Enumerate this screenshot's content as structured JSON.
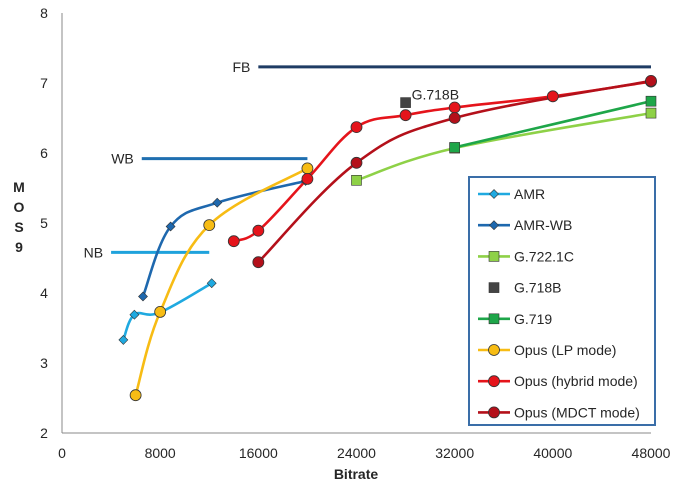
{
  "chart_data": {
    "type": "line",
    "title": "",
    "xlabel": "Bitrate",
    "ylabel": "MOS 9",
    "xlim": [
      0,
      48000
    ],
    "ylim": [
      2,
      8
    ],
    "xticks": [
      0,
      8000,
      16000,
      24000,
      32000,
      40000,
      48000
    ],
    "yticks": [
      2,
      3,
      4,
      5,
      6,
      7,
      8
    ],
    "grid": false,
    "legend_position": "right",
    "bands": [
      {
        "label": "NB",
        "y": 4.58,
        "x": [
          4000,
          12000
        ],
        "color": "#1fa2dc"
      },
      {
        "label": "WB",
        "y": 5.92,
        "x": [
          6500,
          20000
        ],
        "color": "#1f6fb0"
      },
      {
        "label": "FB",
        "y": 7.23,
        "x": [
          16000,
          48000
        ],
        "color": "#1f3c64"
      }
    ],
    "series": [
      {
        "name": "AMR",
        "color": "#1fa9e0",
        "marker": "diamond",
        "marker_fill": "#1fa9e0",
        "points": [
          [
            5000,
            3.33
          ],
          [
            5900,
            3.69
          ],
          [
            7950,
            3.72
          ],
          [
            12200,
            4.14
          ]
        ]
      },
      {
        "name": "AMR-WB",
        "color": "#1e68ae",
        "marker": "diamond",
        "marker_fill": "#1e68ae",
        "points": [
          [
            6600,
            3.95
          ],
          [
            8850,
            4.95
          ],
          [
            12650,
            5.29
          ],
          [
            19850,
            5.6
          ]
        ]
      },
      {
        "name": "G.722.1C",
        "color": "#8ed147",
        "marker": "square",
        "marker_fill": "#8ed147",
        "points": [
          [
            24000,
            5.61
          ],
          [
            32000,
            6.07
          ],
          [
            48000,
            6.57
          ]
        ]
      },
      {
        "name": "G.718B",
        "color": "#444444",
        "marker": "square",
        "marker_fill": "#444444",
        "no_line": true,
        "points": [
          [
            28000,
            6.72
          ]
        ]
      },
      {
        "name": "G.719",
        "color": "#1ea649",
        "marker": "square",
        "marker_fill": "#1ea649",
        "points": [
          [
            32000,
            6.08
          ],
          [
            48000,
            6.74
          ]
        ]
      },
      {
        "name": "Opus (LP mode)",
        "color": "#f7bc14",
        "marker": "circle",
        "marker_fill": "#f7bc14",
        "points": [
          [
            6000,
            2.54
          ],
          [
            8000,
            3.73
          ],
          [
            12000,
            4.97
          ],
          [
            20000,
            5.78
          ]
        ]
      },
      {
        "name": "Opus (hybrid mode)",
        "color": "#e5141b",
        "marker": "circle",
        "marker_fill": "#e5141b",
        "points": [
          [
            14000,
            4.74
          ],
          [
            16000,
            4.89
          ],
          [
            20000,
            5.63
          ],
          [
            24000,
            6.37
          ],
          [
            28000,
            6.54
          ],
          [
            32000,
            6.65
          ],
          [
            40000,
            6.81
          ],
          [
            48000,
            7.02
          ]
        ]
      },
      {
        "name": "Opus (MDCT mode)",
        "color": "#b4101a",
        "marker": "circle",
        "marker_fill": "#b4101a",
        "points": [
          [
            16000,
            4.44
          ],
          [
            24000,
            5.86
          ],
          [
            32000,
            6.5
          ],
          [
            48000,
            7.03
          ]
        ]
      }
    ],
    "annotations": [
      {
        "text": "G.718B",
        "x": 28000,
        "y": 6.72
      }
    ]
  }
}
